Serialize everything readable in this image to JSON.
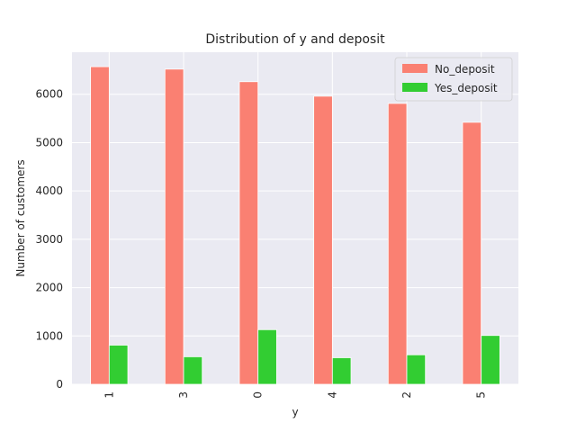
{
  "chart_data": {
    "type": "bar",
    "title": "Distribution of y and deposit",
    "xlabel": "y",
    "ylabel": "Number of customers",
    "categories": [
      "1",
      "3",
      "0",
      "4",
      "2",
      "5"
    ],
    "series": [
      {
        "name": "No_deposit",
        "values": [
          6570,
          6520,
          6260,
          5960,
          5810,
          5420
        ],
        "color": "#fa8072"
      },
      {
        "name": "Yes_deposit",
        "values": [
          810,
          570,
          1130,
          550,
          610,
          1010
        ],
        "color": "#32cd32"
      }
    ],
    "ylim": [
      0,
      6870
    ],
    "yticks": [
      0,
      1000,
      2000,
      3000,
      4000,
      5000,
      6000
    ],
    "grid": true,
    "legend_position": "top-right",
    "x_tick_rotation": 90,
    "background_color": "#eaeaf2"
  }
}
